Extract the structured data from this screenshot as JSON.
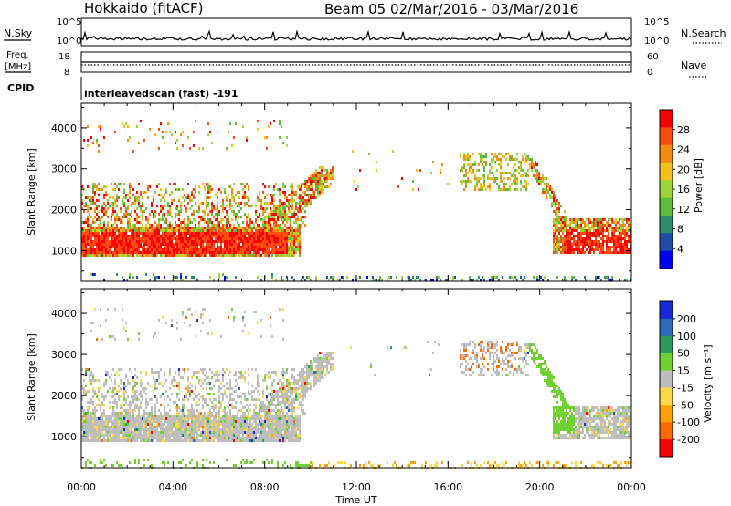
{
  "header": {
    "title": "Hokkaido (fitACF)",
    "beam_range": "Beam 05  02/Mar/2016 - 03/Mar/2016"
  },
  "top_panels": {
    "nsky": {
      "label": "N.Sky",
      "left_ticks": [
        "10^5",
        "10^0"
      ],
      "right_ticks": [
        "10^5",
        "10^0"
      ],
      "right_label": "N.Search"
    },
    "freq": {
      "label_line1": "Freq.",
      "label_line2": "[MHz]",
      "left_ticks": [
        "18",
        "8"
      ],
      "right_ticks": [
        "60",
        "0"
      ],
      "right_label": "Nave"
    },
    "cpid": {
      "label": "CPID",
      "value": "interleavedscan (fast) -191"
    }
  },
  "colors": {
    "power_scale": [
      "#0000ff",
      "#1f4fa5",
      "#2e8b6a",
      "#5cbd3c",
      "#9ad43a",
      "#f2c21a",
      "#f58a10",
      "#ff4a10",
      "#ff0000"
    ],
    "velocity_scale": [
      "#ff0000",
      "#ff6a00",
      "#ffa000",
      "#ffd84a",
      "#bebebe",
      "#6fd230",
      "#2e9a5a",
      "#2a6ab8",
      "#1a2ad8"
    ]
  },
  "chart_data": [
    {
      "type": "heatmap",
      "name": "Power",
      "xlabel": "",
      "ylabel": "Slant Range [km]",
      "x_ticks": [
        "00:00",
        "04:00",
        "08:00",
        "12:00",
        "16:00",
        "20:00",
        "00:00"
      ],
      "y_ticks": [
        1000,
        2000,
        3000,
        4000
      ],
      "ylim": [
        250,
        4600
      ],
      "xlim_hours": [
        0,
        24
      ],
      "colorbar": {
        "label": "Power [dB]",
        "ticks": [
          4,
          8,
          12,
          16,
          20,
          24,
          28
        ],
        "range": [
          0,
          32
        ]
      }
    },
    {
      "type": "heatmap",
      "name": "Velocity",
      "xlabel": "Time UT",
      "ylabel": "Slant Range [km]",
      "x_ticks": [
        "00:00",
        "04:00",
        "08:00",
        "12:00",
        "16:00",
        "20:00",
        "00:00"
      ],
      "y_ticks": [
        1000,
        2000,
        3000,
        4000
      ],
      "ylim": [
        250,
        4600
      ],
      "xlim_hours": [
        0,
        24
      ],
      "colorbar": {
        "label": "Velocity [m s⁻¹]",
        "ticks": [
          200,
          100,
          50,
          15,
          -15,
          -50,
          -100,
          -200
        ]
      }
    }
  ]
}
